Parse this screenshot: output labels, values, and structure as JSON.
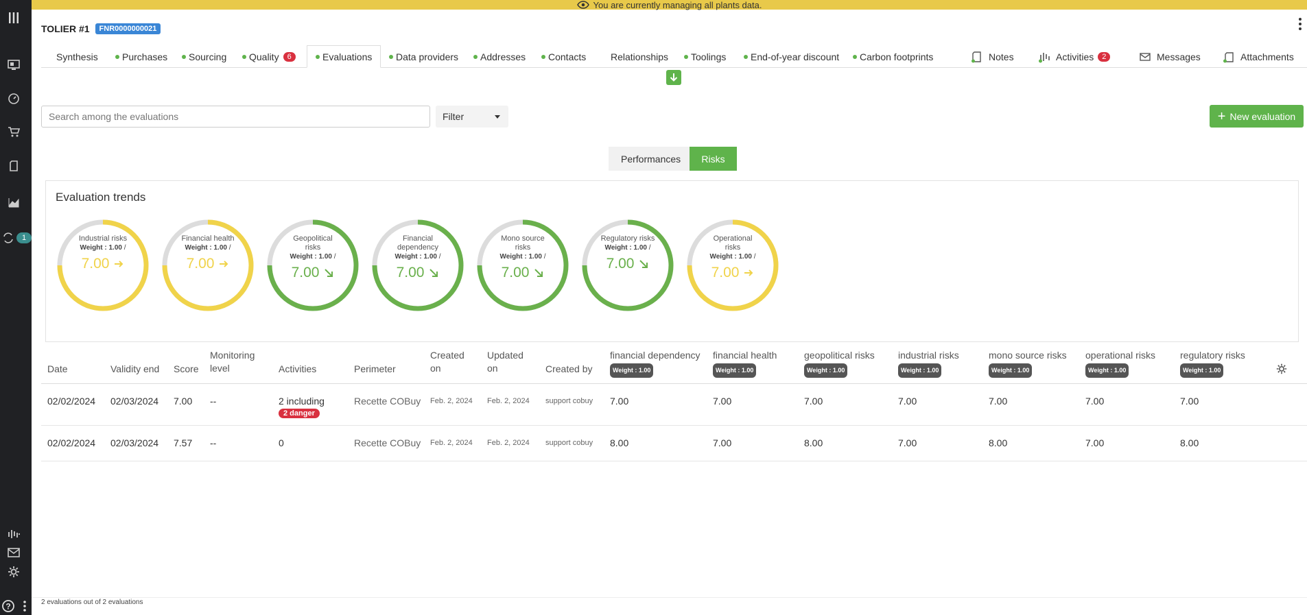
{
  "banner": {
    "text": "You are currently managing all plants data."
  },
  "header": {
    "title": "TOLIER #1",
    "tag": "FNR0000000021"
  },
  "sidebar": {
    "badge": "1"
  },
  "tabs": [
    {
      "label": "Synthesis"
    },
    {
      "label": "Purchases"
    },
    {
      "label": "Sourcing"
    },
    {
      "label": "Quality",
      "badge": "6"
    },
    {
      "label": "Evaluations"
    },
    {
      "label": "Data providers"
    },
    {
      "label": "Addresses"
    },
    {
      "label": "Contacts"
    },
    {
      "label": "Relationships"
    },
    {
      "label": "Toolings"
    },
    {
      "label": "End-of-year discount"
    },
    {
      "label": "Carbon footprints"
    },
    {
      "label": "Notes"
    },
    {
      "label": "Activities",
      "badge": "2"
    },
    {
      "label": "Messages"
    },
    {
      "label": "Attachments"
    }
  ],
  "search": {
    "placeholder": "Search among the evaluations"
  },
  "filter": {
    "label": "Filter"
  },
  "new_eval": {
    "label": "New evaluation"
  },
  "toggle": {
    "performances": "Performances",
    "risks": "Risks"
  },
  "trends": {
    "title": "Evaluation trends",
    "gauges": [
      {
        "name": "Industrial risks",
        "weight": "Weight : 1.00",
        "score": "7.00",
        "trend": "right",
        "color": "#f0d34a"
      },
      {
        "name": "Financial health",
        "weight": "Weight : 1.00",
        "score": "7.00",
        "trend": "right",
        "color": "#f0d34a"
      },
      {
        "name": "Geopolitical risks",
        "weight": "Weight : 1.00",
        "score": "7.00",
        "trend": "down-right",
        "color": "#6ab04c"
      },
      {
        "name": "Financial dependency",
        "weight": "Weight : 1.00",
        "score": "7.00",
        "trend": "down-right",
        "color": "#6ab04c"
      },
      {
        "name": "Mono source risks",
        "weight": "Weight : 1.00",
        "score": "7.00",
        "trend": "down-right",
        "color": "#6ab04c"
      },
      {
        "name": "Regulatory risks",
        "weight": "Weight : 1.00",
        "score": "7.00",
        "trend": "down-right",
        "color": "#6ab04c"
      },
      {
        "name": "Operational risks",
        "weight": "Weight : 1.00",
        "score": "7.00",
        "trend": "right",
        "color": "#f0d34a"
      }
    ]
  },
  "table": {
    "headers": {
      "date": "Date",
      "validity_end": "Validity end",
      "score": "Score",
      "monitoring_level": "Monitoring level",
      "activities": "Activities",
      "perimeter": "Perimeter",
      "created_on": "Created on",
      "updated_on": "Updated on",
      "created_by": "Created by",
      "financial_dependency": "financial dependency",
      "financial_health": "financial health",
      "geopolitical_risks": "geopolitical risks",
      "industrial_risks": "industrial risks",
      "mono_source_risks": "mono source risks",
      "operational_risks": "operational risks",
      "regulatory_risks": "regulatory risks",
      "weight": "Weight : 1.00"
    },
    "rows": [
      {
        "date": "02/02/2024",
        "validity_end": "02/03/2024",
        "score": "7.00",
        "monitoring_level": "--",
        "activities": "2 including",
        "activities_badge": "2 danger",
        "perimeter": "Recette COBuy",
        "created_on": "Feb. 2, 2024",
        "updated_on": "Feb. 2, 2024",
        "created_by": "support cobuy",
        "financial_dependency": "7.00",
        "financial_health": "7.00",
        "geopolitical_risks": "7.00",
        "industrial_risks": "7.00",
        "mono_source_risks": "7.00",
        "operational_risks": "7.00",
        "regulatory_risks": "7.00"
      },
      {
        "date": "02/02/2024",
        "validity_end": "02/03/2024",
        "score": "7.57",
        "monitoring_level": "--",
        "activities": "0",
        "activities_badge": "",
        "perimeter": "Recette COBuy",
        "created_on": "Feb. 2, 2024",
        "updated_on": "Feb. 2, 2024",
        "created_by": "support cobuy",
        "financial_dependency": "8.00",
        "financial_health": "7.00",
        "geopolitical_risks": "8.00",
        "industrial_risks": "7.00",
        "mono_source_risks": "8.00",
        "operational_risks": "7.00",
        "regulatory_risks": "8.00"
      }
    ]
  },
  "footer": {
    "text": "2 evaluations out of 2 evaluations"
  }
}
